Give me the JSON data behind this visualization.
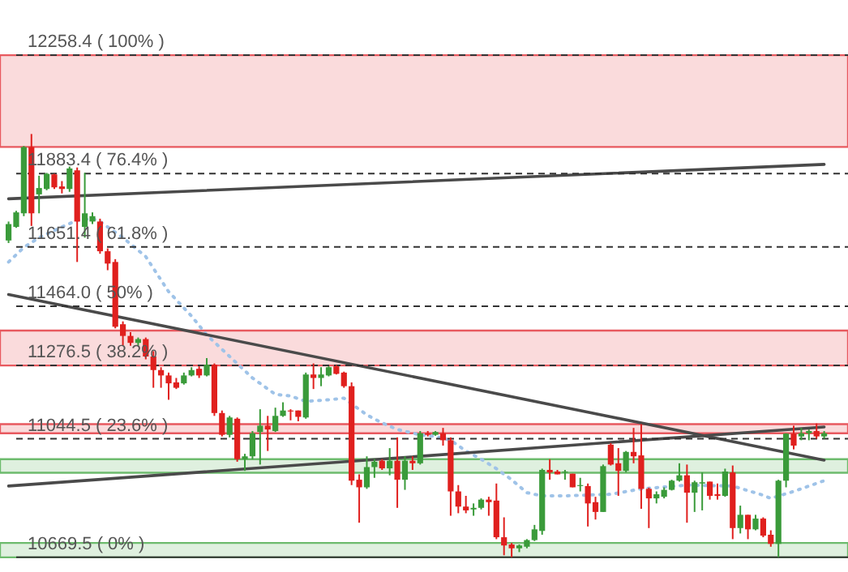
{
  "chart_data": {
    "type": "candlestick",
    "categories": [
      null,
      null,
      null,
      null,
      null,
      null,
      null,
      null,
      null,
      null,
      null,
      null,
      null,
      null,
      null,
      null,
      null,
      null,
      null,
      null,
      null,
      null,
      null,
      null,
      null,
      null,
      null,
      null,
      null,
      null,
      null,
      null,
      null,
      null,
      null,
      null,
      null,
      null,
      null,
      null,
      null,
      null,
      null,
      null,
      null,
      null,
      null,
      null,
      null,
      null,
      null,
      null,
      null,
      null,
      null,
      null,
      null,
      null,
      null,
      null,
      null,
      null,
      null,
      null,
      null,
      null,
      null,
      null,
      null,
      null,
      null,
      null,
      null,
      null,
      null,
      null,
      null,
      null,
      null,
      null,
      null,
      null,
      null,
      null,
      null,
      null,
      null,
      null,
      null,
      null,
      null,
      null,
      null,
      null,
      null,
      null,
      null,
      null,
      null,
      null,
      null,
      null,
      null,
      null,
      null,
      null,
      null,
      null
    ],
    "ylim": [
      10623,
      12433
    ],
    "tick_labels": false,
    "series": [
      {
        "ohlc": [
          [
            11672,
            11732,
            11664,
            11724
          ],
          [
            11715,
            11766,
            11712,
            11761
          ],
          [
            11758,
            11971,
            11749,
            11968
          ],
          [
            11968,
            12009,
            11718,
            11758
          ],
          [
            11818,
            11877,
            11758,
            11838
          ],
          [
            11835,
            11886,
            11831,
            11883
          ],
          [
            11881,
            11883,
            11835,
            11840
          ],
          [
            11843,
            11860,
            11821,
            11835
          ],
          [
            11835,
            11906,
            11826,
            11900
          ],
          [
            11894,
            11903,
            11604,
            11732
          ],
          [
            11715,
            11886,
            11681,
            11758
          ],
          [
            11732,
            11761,
            11724,
            11749
          ],
          [
            11732,
            11741,
            11630,
            11638
          ],
          [
            11638,
            11647,
            11578,
            11599
          ],
          [
            11604,
            11613,
            11394,
            11399
          ],
          [
            11407,
            11416,
            11339,
            11370
          ],
          [
            11370,
            11382,
            11339,
            11348
          ],
          [
            11348,
            11365,
            11339,
            11360
          ],
          [
            11360,
            11365,
            11296,
            11305
          ],
          [
            11305,
            11322,
            11206,
            11262
          ],
          [
            11262,
            11271,
            11206,
            11245
          ],
          [
            11245,
            11254,
            11168,
            11220
          ],
          [
            11223,
            11237,
            11202,
            11206
          ],
          [
            11220,
            11254,
            11216,
            11245
          ],
          [
            11245,
            11271,
            11242,
            11262
          ],
          [
            11266,
            11274,
            11237,
            11245
          ],
          [
            11245,
            11300,
            11242,
            11279
          ],
          [
            11279,
            11283,
            11117,
            11126
          ],
          [
            11126,
            11134,
            11052,
            11057
          ],
          [
            11057,
            11117,
            11049,
            11112
          ],
          [
            11108,
            11112,
            10972,
            10980
          ],
          [
            10980,
            10997,
            10943,
            10989
          ],
          [
            10989,
            11069,
            10980,
            11062
          ],
          [
            11066,
            11138,
            10963,
            11086
          ],
          [
            11086,
            11117,
            11006,
            11074
          ],
          [
            11069,
            11143,
            11066,
            11117
          ],
          [
            11117,
            11160,
            11114,
            11134
          ],
          [
            11134,
            11138,
            11103,
            11131
          ],
          [
            11134,
            11134,
            11100,
            11114
          ],
          [
            11112,
            11254,
            11108,
            11248
          ],
          [
            11248,
            11283,
            11202,
            11237
          ],
          [
            11237,
            11271,
            11211,
            11248
          ],
          [
            11245,
            11274,
            11242,
            11271
          ],
          [
            11274,
            11278,
            11248,
            11250
          ],
          [
            11254,
            11257,
            11206,
            11211
          ],
          [
            11211,
            11223,
            10898,
            10912
          ],
          [
            10915,
            10932,
            10779,
            10891
          ],
          [
            10891,
            10989,
            10886,
            10955
          ],
          [
            10955,
            10980,
            10921,
            10972
          ],
          [
            10975,
            10980,
            10946,
            10951
          ],
          [
            10951,
            11015,
            10929,
            10975
          ],
          [
            10975,
            11049,
            10826,
            10915
          ],
          [
            10915,
            10989,
            10883,
            10975
          ],
          [
            10975,
            10989,
            10946,
            10967
          ],
          [
            10967,
            11069,
            10963,
            11062
          ],
          [
            11062,
            11069,
            11052,
            11057
          ],
          [
            11057,
            11069,
            11054,
            11066
          ],
          [
            11062,
            11079,
            11023,
            11040
          ],
          [
            11040,
            11049,
            10801,
            10878
          ],
          [
            10878,
            10898,
            10809,
            10830
          ],
          [
            10830,
            10864,
            10809,
            10818
          ],
          [
            10821,
            10840,
            10801,
            10826
          ],
          [
            10826,
            10856,
            10821,
            10852
          ],
          [
            10852,
            10861,
            10801,
            10844
          ],
          [
            10849,
            10903,
            10727,
            10733
          ],
          [
            10733,
            10796,
            10676,
            10707
          ],
          [
            10710,
            10715,
            10670,
            10698
          ],
          [
            10698,
            10710,
            10686,
            10707
          ],
          [
            10703,
            10727,
            10698,
            10724
          ],
          [
            10724,
            10772,
            10721,
            10758
          ],
          [
            10753,
            10950,
            10741,
            10946
          ],
          [
            10946,
            10980,
            10915,
            10938
          ],
          [
            10941,
            10946,
            10932,
            10932
          ],
          [
            10938,
            10946,
            10915,
            10941
          ],
          [
            10934,
            10934,
            10891,
            10891
          ],
          [
            10895,
            10921,
            10878,
            10898
          ],
          [
            10895,
            10903,
            10767,
            10840
          ],
          [
            10844,
            10861,
            10789,
            10813
          ],
          [
            10813,
            10963,
            10813,
            10958
          ],
          [
            11026,
            11031,
            10960,
            10963
          ],
          [
            10967,
            11015,
            10864,
            10943
          ],
          [
            10943,
            11006,
            10938,
            11003
          ],
          [
            11003,
            11079,
            10967,
            10989
          ],
          [
            10992,
            11091,
            10823,
            10886
          ],
          [
            10886,
            10890,
            10762,
            10856
          ],
          [
            10856,
            10878,
            10840,
            10869
          ],
          [
            10861,
            10891,
            10856,
            10883
          ],
          [
            10883,
            10915,
            10881,
            10912
          ],
          [
            10912,
            10967,
            10909,
            10929
          ],
          [
            10929,
            10963,
            10779,
            10874
          ],
          [
            10874,
            10912,
            10813,
            10907
          ],
          [
            10903,
            10938,
            10818,
            10907
          ],
          [
            10909,
            10909,
            10852,
            10864
          ],
          [
            10869,
            10903,
            10852,
            10864
          ],
          [
            10864,
            10950,
            10861,
            10941
          ],
          [
            10938,
            10960,
            10727,
            10762
          ],
          [
            10762,
            10833,
            10745,
            10804
          ],
          [
            10804,
            10804,
            10727,
            10758
          ],
          [
            10758,
            10804,
            10755,
            10792
          ],
          [
            10792,
            10796,
            10733,
            10738
          ],
          [
            10741,
            10755,
            10703,
            10712
          ],
          [
            10712,
            10915,
            10670,
            10912
          ],
          [
            10912,
            11062,
            10891,
            11061
          ],
          [
            11061,
            11086,
            11011,
            11023
          ],
          [
            11052,
            11079,
            11040,
            11062
          ],
          [
            11062,
            11074,
            11040,
            11069
          ],
          [
            11069,
            11093,
            11045,
            11052
          ],
          [
            11052,
            11069,
            11045,
            11062
          ]
        ],
        "colors": [
          "#3a9b3a",
          "#3a9b3a",
          "#3a9b3a",
          "#e0201e",
          "#3a9b3a",
          "#3a9b3a",
          "#e0201e",
          "#e0201e",
          "#3a9b3a",
          "#e0201e",
          "#3a9b3a",
          "#3a9b3a",
          "#e0201e",
          "#e0201e",
          "#e0201e",
          "#e0201e",
          "#e0201e",
          "#3a9b3a",
          "#e0201e",
          "#e0201e",
          "#e0201e",
          "#e0201e",
          "#e0201e",
          "#3a9b3a",
          "#3a9b3a",
          "#e0201e",
          "#3a9b3a",
          "#e0201e",
          "#e0201e",
          "#3a9b3a",
          "#e0201e",
          "#3a9b3a",
          "#3a9b3a",
          "#3a9b3a",
          "#e0201e",
          "#3a9b3a",
          "#3a9b3a",
          "#e0201e",
          "#e0201e",
          "#3a9b3a",
          "#e0201e",
          "#3a9b3a",
          "#3a9b3a",
          "#e0201e",
          "#e0201e",
          "#e0201e",
          "#e0201e",
          "#3a9b3a",
          "#3a9b3a",
          "#e0201e",
          "#3a9b3a",
          "#e0201e",
          "#3a9b3a",
          "#e0201e",
          "#3a9b3a",
          "#e0201e",
          "#3a9b3a",
          "#e0201e",
          "#e0201e",
          "#e0201e",
          "#e0201e",
          "#3a9b3a",
          "#3a9b3a",
          "#e0201e",
          "#e0201e",
          "#e0201e",
          "#e0201e",
          "#3a9b3a",
          "#3a9b3a",
          "#3a9b3a",
          "#3a9b3a",
          "#e0201e",
          "#e0201e",
          "#3a9b3a",
          "#e0201e",
          "#3a9b3a",
          "#e0201e",
          "#e0201e",
          "#3a9b3a",
          "#e0201e",
          "#e0201e",
          "#3a9b3a",
          "#e0201e",
          "#e0201e",
          "#e0201e",
          "#3a9b3a",
          "#3a9b3a",
          "#3a9b3a",
          "#3a9b3a",
          "#e0201e",
          "#3a9b3a",
          "#3a9b3a",
          "#e0201e",
          "#e0201e",
          "#3a9b3a",
          "#e0201e",
          "#3a9b3a",
          "#e0201e",
          "#3a9b3a",
          "#e0201e",
          "#e0201e",
          "#3a9b3a",
          "#3a9b3a",
          "#e0201e",
          "#3a9b3a",
          "#3a9b3a",
          "#e0201e",
          "#3a9b3a"
        ]
      },
      {
        "type": "line",
        "color": "#9fc3e8",
        "line_style": "dotted",
        "values": [
          11604,
          null,
          11650,
          null,
          11681,
          null,
          null,
          11715,
          null,
          11736,
          null,
          11741,
          11732,
          null,
          null,
          11681,
          null,
          null,
          11621,
          null,
          null,
          11510,
          null,
          null,
          11433,
          null,
          11373,
          null,
          null,
          11305,
          null,
          null,
          11237,
          null,
          null,
          11185,
          null,
          11180,
          null,
          11163,
          null,
          null,
          11168,
          null,
          11173,
          null,
          null,
          11120,
          null,
          11095,
          null,
          11074,
          null,
          null,
          11057,
          null,
          11052,
          null,
          11040,
          null,
          11006,
          null,
          10980,
          null,
          10950,
          null,
          10915,
          null,
          10874,
          null,
          10864,
          null,
          null,
          10864,
          null,
          null,
          null,
          null,
          null,
          10869,
          null,
          null,
          null,
          10886,
          null,
          null,
          null,
          null,
          null,
          10898,
          null,
          null,
          null,
          null,
          null,
          10895,
          null,
          null,
          null,
          10866,
          10856,
          null,
          null,
          10878,
          null,
          null,
          null,
          10912
        ]
      },
      {
        "type": "line",
        "color": "#4a4a4a",
        "line_style": "solid",
        "values": [
          11804,
          null,
          null,
          null,
          null,
          null,
          null,
          null,
          null,
          null,
          null,
          null,
          null,
          null,
          null,
          null,
          null,
          null,
          null,
          null,
          null,
          null,
          null,
          null,
          null,
          null,
          null,
          null,
          null,
          null,
          null,
          null,
          null,
          null,
          null,
          null,
          null,
          null,
          null,
          null,
          null,
          null,
          null,
          null,
          null,
          null,
          null,
          null,
          null,
          null,
          null,
          null,
          null,
          null,
          null,
          null,
          null,
          null,
          null,
          null,
          null,
          null,
          null,
          null,
          null,
          null,
          null,
          null,
          null,
          null,
          null,
          null,
          null,
          null,
          null,
          null,
          null,
          null,
          null,
          null,
          null,
          null,
          null,
          null,
          null,
          null,
          null,
          null,
          null,
          null,
          null,
          null,
          null,
          null,
          null,
          null,
          null,
          null,
          null,
          null,
          null,
          null,
          null,
          null,
          null,
          null,
          null,
          11913
        ]
      },
      {
        "type": "line",
        "color": "#4a4a4a",
        "line_style": "solid",
        "values": [
          11501,
          null,
          null,
          null,
          null,
          null,
          null,
          null,
          null,
          null,
          null,
          null,
          null,
          null,
          null,
          null,
          null,
          null,
          null,
          null,
          null,
          null,
          null,
          null,
          null,
          null,
          null,
          null,
          null,
          null,
          null,
          null,
          null,
          null,
          null,
          null,
          null,
          null,
          null,
          null,
          null,
          null,
          null,
          null,
          null,
          null,
          null,
          null,
          null,
          null,
          null,
          null,
          null,
          null,
          null,
          null,
          null,
          null,
          null,
          null,
          null,
          null,
          null,
          null,
          null,
          null,
          null,
          null,
          null,
          null,
          null,
          null,
          null,
          null,
          null,
          null,
          null,
          null,
          null,
          null,
          null,
          null,
          null,
          null,
          null,
          null,
          null,
          null,
          null,
          null,
          null,
          null,
          null,
          null,
          null,
          null,
          null,
          null,
          null,
          null,
          null,
          null,
          null,
          null,
          null,
          null,
          null,
          10977
        ]
      },
      {
        "type": "line",
        "color": "#4a4a4a",
        "line_style": "solid",
        "values": [
          10895,
          null,
          null,
          null,
          null,
          null,
          null,
          null,
          null,
          null,
          null,
          null,
          null,
          null,
          null,
          null,
          null,
          null,
          null,
          null,
          null,
          null,
          null,
          null,
          null,
          null,
          null,
          null,
          null,
          null,
          null,
          null,
          null,
          null,
          null,
          null,
          null,
          null,
          null,
          null,
          null,
          null,
          null,
          null,
          null,
          null,
          null,
          null,
          null,
          null,
          null,
          null,
          null,
          null,
          null,
          null,
          null,
          null,
          null,
          null,
          null,
          null,
          null,
          null,
          null,
          null,
          null,
          null,
          null,
          null,
          null,
          null,
          null,
          null,
          null,
          null,
          null,
          null,
          null,
          null,
          null,
          null,
          null,
          null,
          null,
          null,
          null,
          null,
          null,
          null,
          null,
          null,
          null,
          null,
          null,
          null,
          null,
          null,
          null,
          null,
          null,
          null,
          null,
          null,
          null,
          null,
          null,
          11082
        ]
      }
    ],
    "bands": [
      {
        "axis": "y",
        "from": 11968,
        "to": 12258.4,
        "color": "#e8595f"
      },
      {
        "axis": "y",
        "from": 11276.5,
        "to": 11387,
        "color": "#e8595f"
      },
      {
        "axis": "y",
        "from": 11062,
        "to": 11091,
        "color": "#e8595f"
      },
      {
        "axis": "y",
        "from": 10937,
        "to": 10980,
        "color": "#6dbb6d"
      },
      {
        "axis": "y",
        "from": 10669.5,
        "to": 10715,
        "color": "#6dbb6d"
      }
    ],
    "ref_lines": [
      {
        "axis": "y",
        "value": 12258.4,
        "label": "12258.4 ( 100% )",
        "line_style": "dashed",
        "color": "#333333"
      },
      {
        "axis": "y",
        "value": 11883.4,
        "label": "11883.4 ( 76.4% )",
        "line_style": "dashed",
        "color": "#333333"
      },
      {
        "axis": "y",
        "value": 11651.4,
        "label": "11651.4 ( 61.8% )",
        "line_style": "dashed",
        "color": "#333333"
      },
      {
        "axis": "y",
        "value": 11464.0,
        "label": "11464.0 ( 50% )",
        "line_style": "dashed",
        "color": "#333333"
      },
      {
        "axis": "y",
        "value": 11276.5,
        "label": "11276.5 ( 38.2% )",
        "line_style": "dashed",
        "color": "#333333"
      },
      {
        "axis": "y",
        "value": 11044.5,
        "label": "11044.5 ( 23.6% )",
        "line_style": "dashed",
        "color": "#333333"
      },
      {
        "axis": "y",
        "value": 10669.5,
        "label": "10669.5 ( 0% )",
        "line_style": "solid",
        "color": "#333333"
      }
    ]
  }
}
